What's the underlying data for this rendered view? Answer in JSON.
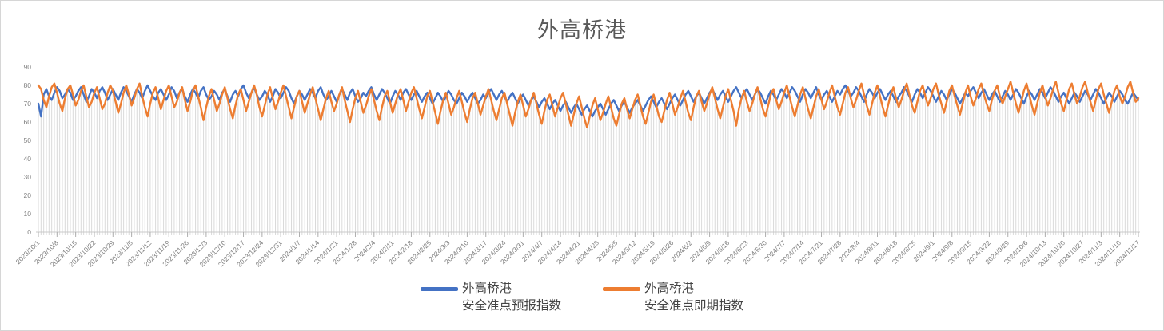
{
  "title": "外高桥港",
  "colors": {
    "series1": "#4472C4",
    "series2": "#ED7D31",
    "drop_line": "#DADADA",
    "axis_line": "#C9C9C9",
    "tick_mark": "#AFAFAF",
    "axis_text": "#7F7F7F",
    "title_text": "#595959",
    "legend_text": "#444444",
    "frame_border": "#D6D6D6"
  },
  "legend": {
    "item1_line1": "外高桥港",
    "item1_line2": "安全准点预报指数",
    "item2_line1": "外高桥港",
    "item2_line2": "安全准点即期指数"
  },
  "chart_data": {
    "type": "line",
    "title": "外高桥港",
    "xlabel": "",
    "ylabel": "",
    "ylim": [
      0,
      90
    ],
    "y_ticks": [
      0,
      10,
      20,
      30,
      40,
      50,
      60,
      70,
      80,
      90
    ],
    "grid": "vertical-drop-lines-per-day",
    "legend_position": "bottom",
    "x_frequency": "daily",
    "x_tick_interval_days": 7,
    "x_tick_labels": [
      "2023/10/1",
      "2023/10/8",
      "2023/10/15",
      "2023/10/22",
      "2023/10/29",
      "2023/11/5",
      "2023/11/12",
      "2023/11/19",
      "2023/11/26",
      "2023/12/3",
      "2023/12/10",
      "2023/12/17",
      "2023/12/24",
      "2023/12/31",
      "2024/1/7",
      "2024/1/14",
      "2024/1/21",
      "2024/1/28",
      "2024/2/4",
      "2024/2/11",
      "2024/2/18",
      "2024/2/25",
      "2024/3/3",
      "2024/3/10",
      "2024/3/17",
      "2024/3/24",
      "2024/3/31",
      "2024/4/7",
      "2024/4/14",
      "2024/4/21",
      "2024/4/28",
      "2024/5/5",
      "2024/5/12",
      "2024/5/19",
      "2024/5/26",
      "2024/6/2",
      "2024/6/9",
      "2024/6/16",
      "2024/6/23",
      "2024/6/30",
      "2024/7/7",
      "2024/7/14",
      "2024/7/21",
      "2024/7/28",
      "2024/8/4",
      "2024/8/11",
      "2024/8/18",
      "2024/8/25",
      "2024/9/1",
      "2024/9/8",
      "2024/9/15",
      "2024/9/22",
      "2024/9/29",
      "2024/10/6",
      "2024/10/13",
      "2024/10/20",
      "2024/10/27",
      "2024/11/3",
      "2024/11/10",
      "2024/11/17"
    ],
    "series": [
      {
        "name": "外高桥港 安全准点预报指数",
        "color": "#4472C4",
        "values": [
          70,
          63,
          75,
          78,
          74,
          72,
          76,
          79,
          77,
          73,
          75,
          78,
          76,
          72,
          74,
          77,
          79,
          75,
          71,
          74,
          78,
          76,
          73,
          77,
          79,
          76,
          72,
          75,
          78,
          75,
          72,
          76,
          79,
          77,
          74,
          71,
          75,
          78,
          76,
          73,
          77,
          80,
          77,
          74,
          72,
          76,
          78,
          75,
          72,
          75,
          79,
          77,
          73,
          76,
          78,
          74,
          71,
          75,
          78,
          76,
          73,
          77,
          79,
          75,
          72,
          74,
          77,
          75,
          72,
          76,
          78,
          74,
          71,
          75,
          77,
          74,
          78,
          80,
          76,
          73,
          76,
          79,
          75,
          72,
          74,
          77,
          75,
          71,
          74,
          78,
          76,
          73,
          76,
          79,
          77,
          73,
          70,
          74,
          77,
          75,
          72,
          75,
          78,
          76,
          73,
          77,
          79,
          75,
          72,
          74,
          77,
          74,
          71,
          75,
          78,
          75,
          72,
          76,
          78,
          74,
          71,
          73,
          76,
          74,
          77,
          79,
          75,
          72,
          75,
          78,
          76,
          73,
          70,
          74,
          77,
          75,
          72,
          76,
          78,
          75,
          72,
          75,
          77,
          74,
          71,
          74,
          76,
          73,
          70,
          73,
          76,
          74,
          71,
          74,
          77,
          75,
          72,
          70,
          73,
          76,
          74,
          71,
          74,
          76,
          73,
          70,
          72,
          75,
          73,
          76,
          78,
          75,
          72,
          75,
          77,
          74,
          71,
          74,
          76,
          73,
          70,
          73,
          75,
          72,
          69,
          72,
          74,
          71,
          68,
          71,
          73,
          70,
          67,
          70,
          72,
          69,
          66,
          69,
          71,
          68,
          65,
          68,
          70,
          67,
          64,
          67,
          69,
          66,
          63,
          66,
          68,
          70,
          67,
          64,
          67,
          70,
          72,
          69,
          66,
          69,
          71,
          68,
          65,
          68,
          70,
          72,
          69,
          66,
          69,
          72,
          74,
          71,
          68,
          71,
          73,
          70,
          67,
          70,
          73,
          75,
          72,
          69,
          72,
          75,
          77,
          74,
          71,
          74,
          76,
          73,
          70,
          73,
          76,
          78,
          75,
          72,
          75,
          77,
          74,
          71,
          74,
          77,
          79,
          76,
          73,
          76,
          78,
          75,
          72,
          75,
          78,
          76,
          73,
          70,
          74,
          77,
          75,
          72,
          75,
          78,
          76,
          73,
          76,
          79,
          77,
          74,
          71,
          75,
          78,
          76,
          73,
          76,
          79,
          75,
          72,
          75,
          77,
          74,
          71,
          74,
          77,
          75,
          78,
          80,
          77,
          74,
          76,
          79,
          77,
          74,
          71,
          75,
          78,
          76,
          73,
          76,
          78,
          75,
          72,
          75,
          77,
          74,
          71,
          74,
          76,
          79,
          77,
          74,
          71,
          75,
          78,
          76,
          73,
          76,
          79,
          77,
          74,
          71,
          74,
          77,
          75,
          72,
          75,
          78,
          76,
          73,
          70,
          73,
          76,
          74,
          77,
          79,
          76,
          73,
          76,
          78,
          75,
          72,
          75,
          77,
          74,
          71,
          74,
          77,
          75,
          72,
          75,
          78,
          76,
          73,
          70,
          74,
          77,
          75,
          72,
          75,
          78,
          76,
          73,
          76,
          79,
          77,
          74,
          71,
          74,
          76,
          73,
          70,
          73,
          76,
          74,
          71,
          74,
          77,
          75,
          72,
          75,
          78,
          76,
          73,
          70,
          73,
          76,
          74,
          71,
          74,
          77,
          75,
          72,
          70,
          73,
          76,
          74,
          72
        ]
      },
      {
        "name": "外高桥港 安全准点即期指数",
        "color": "#ED7D31",
        "values": [
          80,
          78,
          72,
          68,
          74,
          79,
          81,
          76,
          70,
          66,
          73,
          78,
          80,
          75,
          69,
          72,
          77,
          80,
          74,
          68,
          71,
          76,
          79,
          73,
          67,
          70,
          76,
          80,
          77,
          71,
          65,
          70,
          76,
          80,
          75,
          69,
          73,
          78,
          81,
          74,
          68,
          63,
          70,
          76,
          79,
          73,
          67,
          72,
          77,
          80,
          74,
          68,
          71,
          76,
          79,
          72,
          66,
          71,
          77,
          80,
          74,
          68,
          61,
          68,
          74,
          78,
          72,
          66,
          70,
          75,
          79,
          73,
          67,
          62,
          69,
          75,
          78,
          72,
          66,
          71,
          76,
          80,
          75,
          68,
          63,
          69,
          75,
          79,
          73,
          67,
          71,
          76,
          80,
          74,
          68,
          62,
          68,
          74,
          77,
          71,
          65,
          70,
          75,
          79,
          73,
          67,
          61,
          67,
          73,
          77,
          71,
          66,
          70,
          75,
          79,
          72,
          66,
          60,
          67,
          73,
          77,
          71,
          65,
          69,
          74,
          78,
          72,
          66,
          61,
          68,
          74,
          77,
          71,
          65,
          70,
          75,
          78,
          72,
          66,
          71,
          76,
          79,
          73,
          67,
          62,
          68,
          74,
          77,
          71,
          65,
          59,
          66,
          72,
          76,
          70,
          64,
          68,
          73,
          77,
          71,
          65,
          60,
          67,
          73,
          76,
          70,
          64,
          69,
          74,
          78,
          72,
          66,
          61,
          67,
          73,
          76,
          70,
          64,
          58,
          65,
          71,
          75,
          69,
          63,
          67,
          72,
          76,
          70,
          64,
          59,
          66,
          72,
          75,
          69,
          63,
          68,
          73,
          76,
          70,
          64,
          58,
          64,
          70,
          74,
          68,
          62,
          57,
          63,
          69,
          73,
          67,
          61,
          65,
          70,
          74,
          68,
          62,
          58,
          64,
          70,
          73,
          67,
          62,
          67,
          72,
          75,
          69,
          63,
          59,
          65,
          71,
          75,
          69,
          63,
          60,
          66,
          72,
          76,
          70,
          64,
          68,
          73,
          77,
          71,
          65,
          61,
          68,
          74,
          77,
          71,
          66,
          70,
          75,
          79,
          73,
          67,
          62,
          68,
          74,
          78,
          72,
          66,
          58,
          67,
          73,
          77,
          71,
          66,
          70,
          75,
          79,
          73,
          67,
          63,
          69,
          75,
          78,
          72,
          67,
          71,
          76,
          80,
          74,
          68,
          63,
          69,
          75,
          79,
          73,
          67,
          62,
          68,
          74,
          78,
          72,
          67,
          71,
          76,
          80,
          74,
          68,
          64,
          70,
          76,
          79,
          73,
          68,
          72,
          77,
          81,
          75,
          69,
          64,
          70,
          76,
          80,
          74,
          68,
          63,
          69,
          75,
          79,
          73,
          68,
          72,
          77,
          81,
          75,
          69,
          65,
          71,
          77,
          80,
          74,
          69,
          73,
          78,
          81,
          75,
          70,
          65,
          71,
          77,
          80,
          74,
          69,
          64,
          70,
          76,
          80,
          74,
          69,
          73,
          78,
          81,
          75,
          70,
          66,
          72,
          77,
          80,
          74,
          70,
          74,
          78,
          82,
          76,
          70,
          65,
          71,
          77,
          81,
          75,
          69,
          64,
          70,
          76,
          80,
          74,
          69,
          73,
          78,
          82,
          76,
          70,
          66,
          72,
          78,
          81,
          75,
          70,
          74,
          79,
          82,
          76,
          71,
          66,
          72,
          78,
          81,
          75,
          70,
          65,
          71,
          77,
          80,
          74,
          70,
          74,
          79,
          82,
          76,
          71,
          73
        ]
      }
    ]
  }
}
